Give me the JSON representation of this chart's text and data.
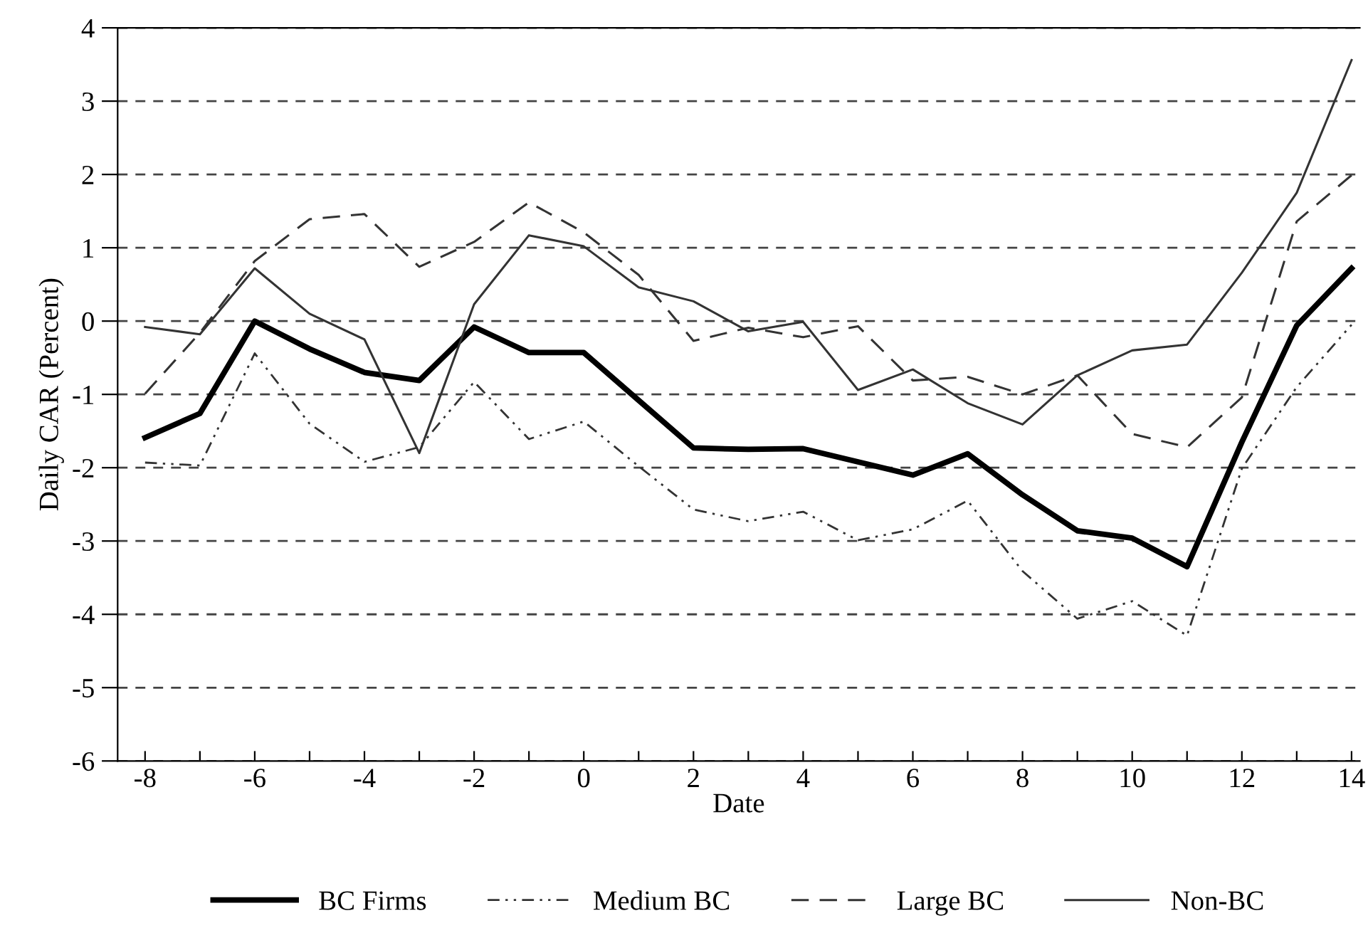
{
  "chart_data": {
    "type": "line",
    "xlabel": "Date",
    "ylabel": "Daily CAR (Percent)",
    "x": [
      -8,
      -7,
      -6,
      -5,
      -4,
      -3,
      -2,
      -1,
      0,
      1,
      2,
      3,
      4,
      5,
      6,
      7,
      8,
      9,
      10,
      11,
      12,
      13,
      14
    ],
    "series": [
      {
        "name": "BC Firms",
        "color": "#000000",
        "line_style": "solid",
        "values": [
          -1.59,
          -1.26,
          0,
          -0.38,
          -0.7,
          -0.81,
          -0.08,
          -0.43,
          -0.43,
          -1.08,
          -1.73,
          -1.75,
          -1.74,
          -1.92,
          -2.1,
          -1.81,
          -2.37,
          -2.86,
          -2.96,
          -3.35,
          -1.65,
          -0.06,
          0.72
        ]
      },
      {
        "name": "Medium BC",
        "color": "#333333",
        "line_style": "dashdot",
        "values": [
          -1.93,
          -1.97,
          -0.44,
          -1.4,
          -1.92,
          -1.72,
          -0.83,
          -1.61,
          -1.37,
          -1.98,
          -2.57,
          -2.73,
          -2.6,
          -2.99,
          -2.84,
          -2.45,
          -3.41,
          -4.06,
          -3.82,
          -4.29,
          -2.01,
          -0.9,
          -0.05
        ]
      },
      {
        "name": "Large BC",
        "color": "#333333",
        "line_style": "dashed",
        "values": [
          -0.99,
          -0.16,
          0.82,
          1.39,
          1.46,
          0.74,
          1.08,
          1.62,
          1.21,
          0.63,
          -0.27,
          -0.09,
          -0.22,
          -0.07,
          -0.81,
          -0.76,
          -1.0,
          -0.74,
          -1.54,
          -1.72,
          -1.04,
          1.36,
          1.99
        ]
      },
      {
        "name": "Non-BC",
        "color": "#333333",
        "line_style": "solid",
        "values": [
          -0.08,
          -0.18,
          0.72,
          0.1,
          -0.25,
          -1.8,
          0.23,
          1.17,
          1.02,
          0.46,
          0.27,
          -0.14,
          -0.01,
          -0.94,
          -0.66,
          -1.12,
          -1.41,
          -0.74,
          -0.4,
          -0.32,
          0.66,
          1.75,
          3.56
        ]
      }
    ],
    "xlim": [
      -8.5,
      14.15
    ],
    "ylim": [
      -6,
      4
    ],
    "xticks": [
      -8,
      {
        "value": -7,
        "label": null
      },
      -6,
      {
        "value": -5,
        "label": null
      },
      -4,
      {
        "value": -3,
        "label": null
      },
      -2,
      {
        "value": -1,
        "label": null
      },
      0,
      {
        "value": 1,
        "label": null
      },
      2,
      {
        "value": 3,
        "label": null
      },
      4,
      {
        "value": 5,
        "label": null
      },
      6,
      {
        "value": 7,
        "label": null
      },
      8,
      {
        "value": 9,
        "label": null
      },
      10,
      {
        "value": 11,
        "label": null
      },
      12,
      {
        "value": 13,
        "label": null
      },
      14
    ],
    "yticks": [
      -6,
      -5,
      -4,
      -3,
      -2,
      -1,
      0,
      1,
      2,
      3,
      4
    ],
    "grid": "y",
    "legend": "bottom",
    "marker": "none"
  }
}
